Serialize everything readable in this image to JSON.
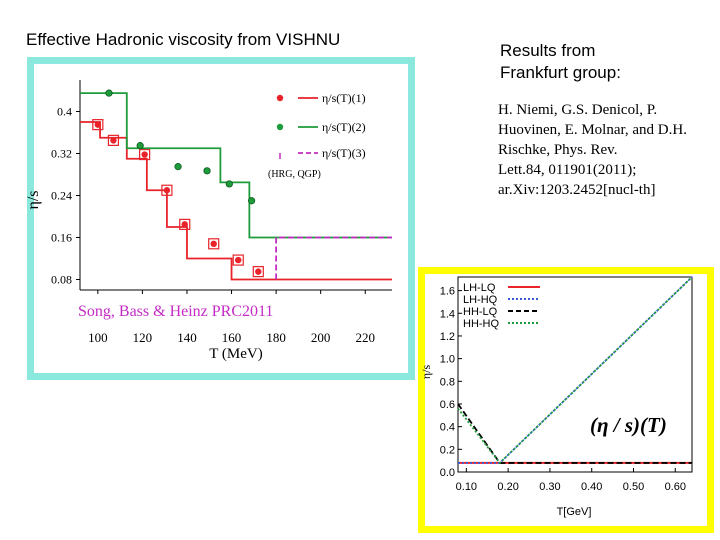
{
  "left_heading": "Effective Hadronic viscosity from VISHNU",
  "right_heading": [
    "Results from",
    "Frankfurt group:"
  ],
  "references": [
    "H. Niemi, G.S. Denicol, P.",
    "Huovinen, E. Molnar, and D.H.",
    "Rischke, Phys. Rev.",
    "Lett.84, 011901(2011);",
    "ar.Xiv:1203.2452[nucl-th]"
  ],
  "colors": {
    "left_frame": "#8be8dd",
    "right_frame": "#ffff00",
    "red": "#e8232a",
    "green": "#1e9b3a",
    "magenta": "#c42bc4",
    "blue": "#3b5bd6",
    "black": "#000000"
  },
  "chart_data": [
    {
      "type": "line",
      "xlabel": "T (MeV)",
      "ylabel": "η/s",
      "x_ticks": [
        "100",
        "120",
        "140",
        "160",
        "180",
        "200",
        "220"
      ],
      "y_ticks": [
        "0.08",
        "0.16",
        "0.24",
        "0.32",
        "0.4"
      ],
      "xlim": [
        92,
        232
      ],
      "ylim": [
        0.06,
        0.46
      ],
      "annotation": "Song, Bass & Heinz PRC2011",
      "legend_position": "top-right",
      "legend_note": "(HRG, QGP)",
      "series": [
        {
          "name": "η/s(T)(1)",
          "color": "red",
          "step_x": [
            92,
            101,
            101,
            113,
            113,
            122,
            122,
            131,
            131,
            140,
            140,
            160,
            160,
            180,
            180,
            232
          ],
          "step_y": [
            0.38,
            0.38,
            0.35,
            0.35,
            0.31,
            0.31,
            0.25,
            0.25,
            0.18,
            0.18,
            0.12,
            0.12,
            0.08,
            0.08,
            0.08,
            0.08
          ],
          "markers": [
            [
              100,
              0.375
            ],
            [
              107,
              0.345
            ],
            [
              121,
              0.318
            ],
            [
              131,
              0.25
            ],
            [
              139,
              0.185
            ],
            [
              152,
              0.148
            ],
            [
              163,
              0.117
            ],
            [
              172,
              0.095
            ]
          ]
        },
        {
          "name": "η/s(T)(2)",
          "color": "green",
          "step_x": [
            92,
            113,
            113,
            155,
            155,
            168,
            168,
            180,
            180,
            232
          ],
          "step_y": [
            0.435,
            0.435,
            0.33,
            0.33,
            0.265,
            0.265,
            0.16,
            0.16,
            0.16,
            0.16
          ],
          "markers": [
            [
              105,
              0.435
            ],
            [
              119,
              0.335
            ],
            [
              136,
              0.295
            ],
            [
              149,
              0.287
            ],
            [
              159,
              0.262
            ],
            [
              169,
              0.23
            ]
          ]
        },
        {
          "name": "η/s(T)(3)",
          "color": "magenta",
          "dashed": true,
          "step_x": [
            180,
            180,
            232
          ],
          "step_y": [
            0.08,
            0.16,
            0.16
          ]
        }
      ]
    },
    {
      "type": "line",
      "xlabel": "T[GeV]",
      "ylabel": "η/s",
      "x_ticks": [
        "0.10",
        "0.20",
        "0.30",
        "0.40",
        "0.50",
        "0.60"
      ],
      "y_ticks": [
        "0.0",
        "0.2",
        "0.4",
        "0.6",
        "0.8",
        "1.0",
        "1.2",
        "1.4",
        "1.6"
      ],
      "xlim": [
        0.08,
        0.64
      ],
      "ylim": [
        0.0,
        1.72
      ],
      "annotation": "(η / s)(T)",
      "legend_position": "top-left",
      "series": [
        {
          "name": "LH-LQ",
          "color": "red",
          "x": [
            0.08,
            0.64
          ],
          "y": [
            0.08,
            0.08
          ]
        },
        {
          "name": "LH-HQ",
          "color": "blue",
          "dotted": true,
          "x": [
            0.08,
            0.18,
            0.64
          ],
          "y": [
            0.08,
            0.08,
            1.72
          ]
        },
        {
          "name": "HH-LQ",
          "color": "black",
          "dashed": true,
          "x": [
            0.08,
            0.18,
            0.64
          ],
          "y": [
            0.6,
            0.08,
            0.08
          ]
        },
        {
          "name": "HH-HQ",
          "color": "green",
          "dotted": true,
          "x": [
            0.08,
            0.18,
            0.64
          ],
          "y": [
            0.56,
            0.08,
            1.72
          ]
        }
      ]
    }
  ]
}
